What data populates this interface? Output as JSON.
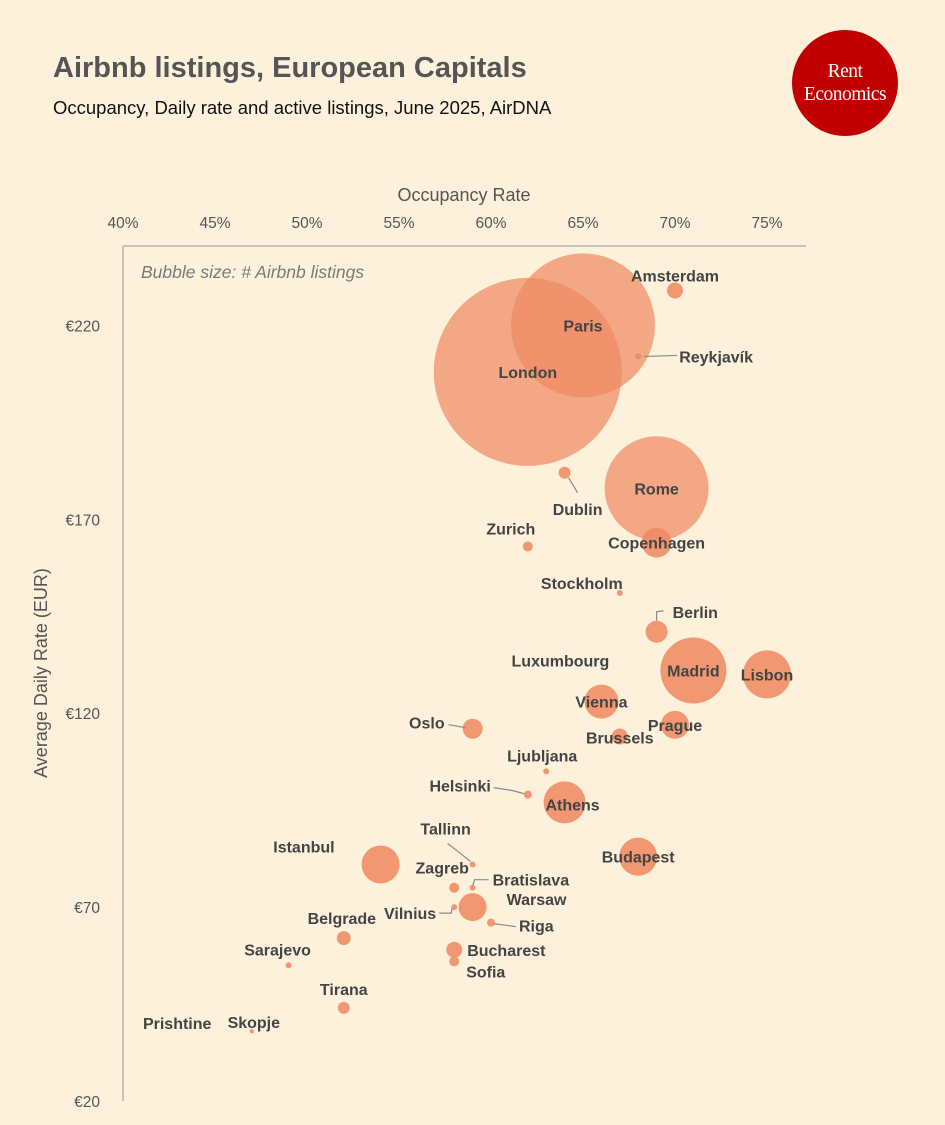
{
  "title": "Airbnb listings, European Capitals",
  "subtitle": "Occupancy, Daily rate and active listings, June 2025, AirDNA",
  "logo": {
    "line1": "Rent",
    "line2": "Economics"
  },
  "chart_data": {
    "type": "scatter",
    "xlabel": "Occupancy Rate",
    "ylabel": "Average Daily Rate (EUR)",
    "xlim": [
      0.4,
      0.77
    ],
    "ylim": [
      20,
      248
    ],
    "xticks": [
      "40%",
      "45%",
      "50%",
      "55%",
      "60%",
      "65%",
      "70%",
      "75%"
    ],
    "yticks": [
      "€20",
      "€70",
      "€120",
      "€170",
      "€220"
    ],
    "annotation": "Bubble size: # Airbnb listings",
    "bubble_color": "#ef8a62",
    "points": [
      {
        "name": "London",
        "x": 0.62,
        "y": 208,
        "size": 94
      },
      {
        "name": "Paris",
        "x": 0.65,
        "y": 220,
        "size": 72
      },
      {
        "name": "Rome",
        "x": 0.69,
        "y": 178,
        "size": 52
      },
      {
        "name": "Madrid",
        "x": 0.71,
        "y": 131,
        "size": 33
      },
      {
        "name": "Lisbon",
        "x": 0.75,
        "y": 130,
        "size": 24
      },
      {
        "name": "Istanbul",
        "x": 0.54,
        "y": 81,
        "size": 19
      },
      {
        "name": "Athens",
        "x": 0.64,
        "y": 97,
        "size": 21
      },
      {
        "name": "Budapest",
        "x": 0.68,
        "y": 83,
        "size": 19
      },
      {
        "name": "Vienna",
        "x": 0.66,
        "y": 123,
        "size": 17
      },
      {
        "name": "Copenhagen",
        "x": 0.69,
        "y": 164,
        "size": 15
      },
      {
        "name": "Prague",
        "x": 0.7,
        "y": 117,
        "size": 14
      },
      {
        "name": "Warsaw",
        "x": 0.59,
        "y": 70,
        "size": 14
      },
      {
        "name": "Berlin",
        "x": 0.69,
        "y": 141,
        "size": 11
      },
      {
        "name": "Oslo",
        "x": 0.59,
        "y": 116,
        "size": 10
      },
      {
        "name": "Amsterdam",
        "x": 0.7,
        "y": 229,
        "size": 8
      },
      {
        "name": "Brussels",
        "x": 0.67,
        "y": 114,
        "size": 8
      },
      {
        "name": "Bucharest",
        "x": 0.58,
        "y": 59,
        "size": 8
      },
      {
        "name": "Belgrade",
        "x": 0.52,
        "y": 62,
        "size": 7
      },
      {
        "name": "Dublin",
        "x": 0.64,
        "y": 182,
        "size": 6
      },
      {
        "name": "Tirana",
        "x": 0.52,
        "y": 44,
        "size": 6
      },
      {
        "name": "Zagreb",
        "x": 0.58,
        "y": 75,
        "size": 5
      },
      {
        "name": "Zurich",
        "x": 0.62,
        "y": 163,
        "size": 5
      },
      {
        "name": "Sofia",
        "x": 0.58,
        "y": 56,
        "size": 5
      },
      {
        "name": "Helsinki",
        "x": 0.62,
        "y": 99,
        "size": 4
      },
      {
        "name": "Riga",
        "x": 0.6,
        "y": 66,
        "size": 4
      },
      {
        "name": "Bratislava",
        "x": 0.59,
        "y": 75,
        "size": 3
      },
      {
        "name": "Vilnius",
        "x": 0.58,
        "y": 70,
        "size": 3
      },
      {
        "name": "Sarajevo",
        "x": 0.49,
        "y": 55,
        "size": 3
      },
      {
        "name": "Tallinn",
        "x": 0.59,
        "y": 81,
        "size": 3
      },
      {
        "name": "Ljubljana",
        "x": 0.63,
        "y": 105,
        "size": 3
      },
      {
        "name": "Stockholm",
        "x": 0.67,
        "y": 151,
        "size": 3
      },
      {
        "name": "Reykjavík",
        "x": 0.68,
        "y": 212,
        "size": 3
      },
      {
        "name": "Skopje",
        "x": 0.47,
        "y": 38,
        "size": 2
      },
      {
        "name": "Luxumbourg",
        "x": 0.71,
        "y": 132,
        "size": 1
      },
      {
        "name": "Prishtine",
        "x": 0.43,
        "y": 38,
        "size": 1
      }
    ]
  }
}
